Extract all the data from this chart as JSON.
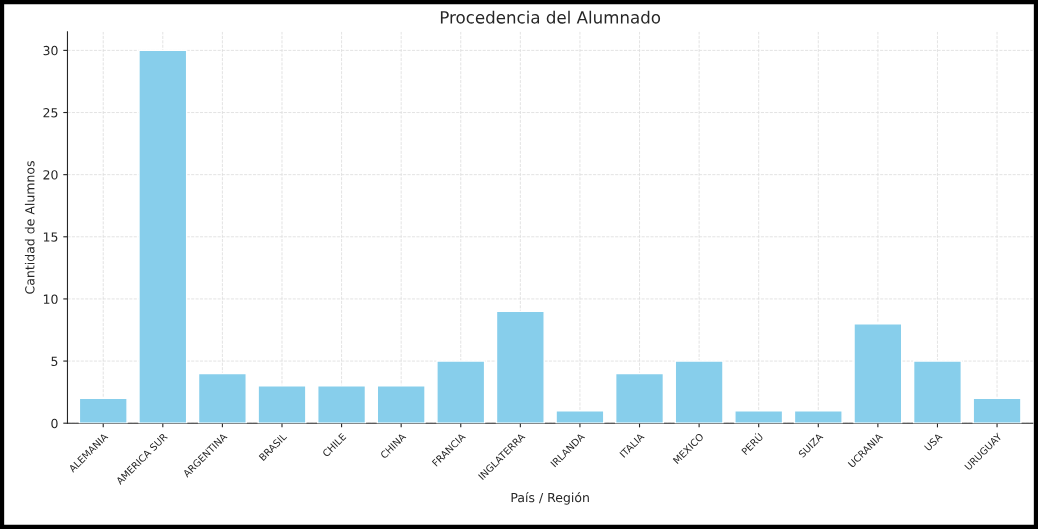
{
  "chart_data": {
    "type": "bar",
    "title": "Procedencia del Alumnado",
    "xlabel": "País / Región",
    "ylabel": "Cantidad de Alumnos",
    "categories": [
      "ALEMANIA",
      "AMERICA SUR",
      "ARGENTINA",
      "BRASIL",
      "CHILE",
      "CHINA",
      "FRANCIA",
      "INGLATERRA",
      "IRLANDA",
      "ITALIA",
      "MEXICO",
      "PERÚ",
      "SUIZA",
      "UCRANIA",
      "USA",
      "URUGUAY"
    ],
    "values": [
      2,
      30,
      4,
      3,
      3,
      3,
      5,
      9,
      1,
      4,
      5,
      1,
      1,
      8,
      5,
      2
    ],
    "color": "#87ceeb",
    "ylim": [
      0,
      31.5
    ],
    "yticks": [
      0,
      5,
      10,
      15,
      20,
      25,
      30
    ],
    "grid": true
  }
}
